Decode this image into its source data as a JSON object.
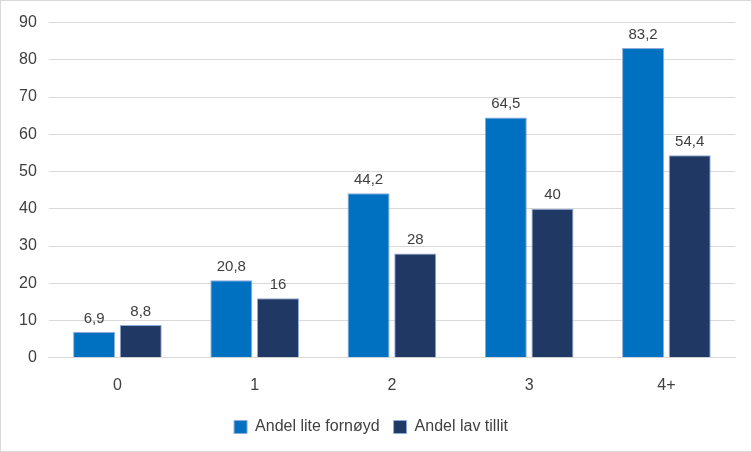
{
  "chart_data": {
    "type": "bar",
    "categories": [
      "0",
      "1",
      "2",
      "3",
      "4+"
    ],
    "series": [
      {
        "name": "Andel lite fornøyd",
        "color": "#0070c0",
        "values": [
          6.9,
          20.8,
          44.2,
          64.5,
          83.2
        ],
        "value_labels": [
          "6,9",
          "20,8",
          "44,2",
          "64,5",
          "83,2"
        ]
      },
      {
        "name": "Andel lav tillit",
        "color": "#1f3864",
        "values": [
          8.8,
          16,
          28,
          40,
          54.4
        ],
        "value_labels": [
          "8,8",
          "16",
          "28",
          "40",
          "54,4"
        ]
      }
    ],
    "ylim": [
      0,
      90
    ],
    "yticks": [
      0,
      10,
      20,
      30,
      40,
      50,
      60,
      70,
      80,
      90
    ],
    "grid": true,
    "legend": "bottom",
    "data_labels": true
  }
}
